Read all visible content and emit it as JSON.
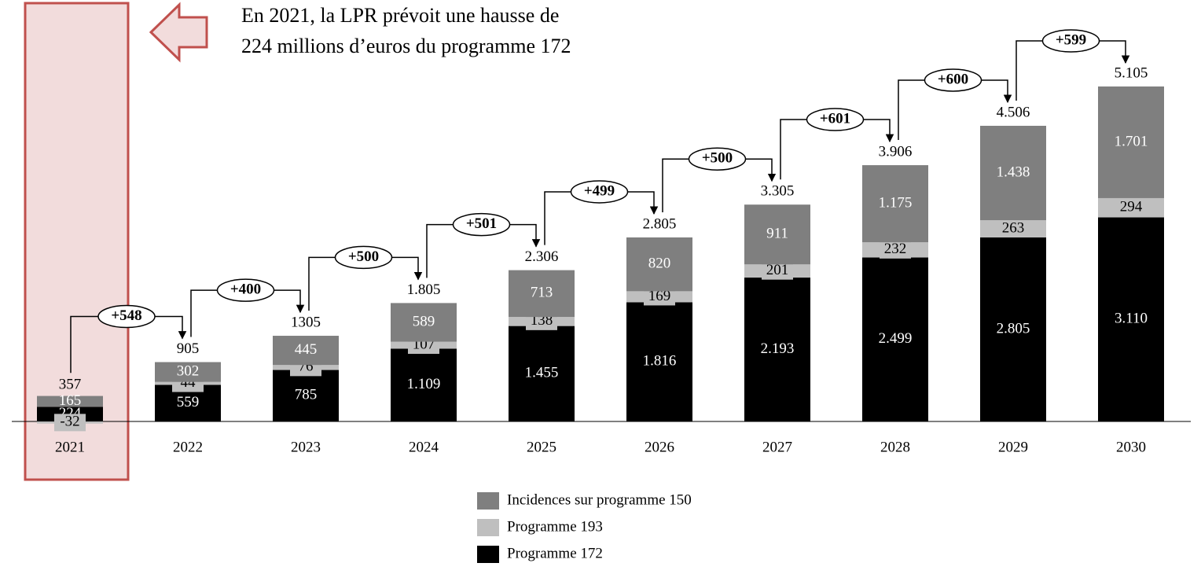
{
  "chart_data": {
    "type": "bar",
    "stacked": true,
    "annotation": [
      "En 2021, la LPR prévoit une hausse de",
      "224 millions d’euros du programme 172"
    ],
    "categories": [
      "2021",
      "2022",
      "2023",
      "2024",
      "2025",
      "2026",
      "2027",
      "2028",
      "2029",
      "2030"
    ],
    "series": [
      {
        "name": "Programme 172",
        "color": "#000000",
        "label_color": "#ffffff",
        "values": [
          224,
          559,
          785,
          1109,
          1455,
          1816,
          2193,
          2499,
          2805,
          3110
        ],
        "value_labels": [
          "224",
          "559",
          "785",
          "1.109",
          "1.455",
          "1.816",
          "2.193",
          "2.499",
          "2.805",
          "3.110"
        ]
      },
      {
        "name": "Programme 193",
        "color": "#bfbfbf",
        "label_color": "#000000",
        "values": [
          -32,
          44,
          76,
          107,
          138,
          169,
          201,
          232,
          263,
          294
        ]
      },
      {
        "name": "Incidences sur programme 150",
        "color": "#7f7f7f",
        "label_color": "#ffffff",
        "values": [
          165,
          302,
          445,
          589,
          713,
          820,
          911,
          1175,
          1438,
          1701
        ],
        "value_labels": [
          "165",
          "302",
          "445",
          "589",
          "713",
          "820",
          "911",
          "1.175",
          "1.438",
          "1.701"
        ]
      }
    ],
    "totals": {
      "values": [
        357,
        905,
        1305,
        1805,
        2306,
        2805,
        3305,
        3906,
        4506,
        5105
      ],
      "value_labels": [
        "357",
        "905",
        "1305",
        "1.805",
        "2.306",
        "2.805",
        "3.305",
        "3.906",
        "4.506",
        "5.105"
      ]
    },
    "increments": {
      "values": [
        548,
        400,
        500,
        501,
        499,
        500,
        601,
        600,
        599
      ],
      "value_labels": [
        "+548",
        "+400",
        "+500",
        "+501",
        "+499",
        "+500",
        "+601",
        "+600",
        "+599"
      ]
    },
    "ylim": [
      -1000,
      6000
    ],
    "highlight_color": "#c0504d"
  }
}
